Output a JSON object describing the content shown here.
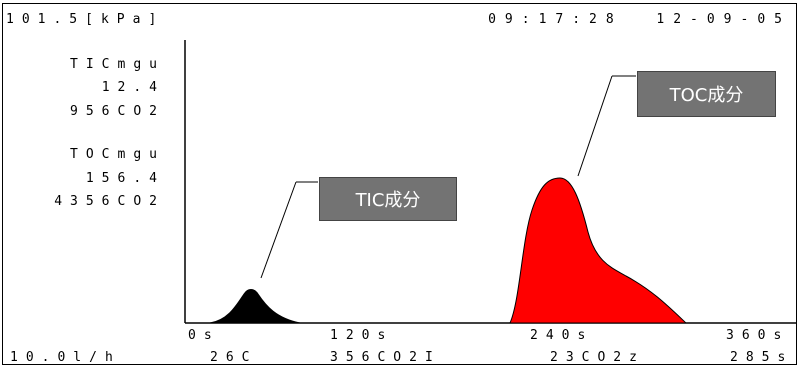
{
  "header": {
    "pressure": "101.5[kPa]",
    "time": "09:17:28",
    "date": "12-09-05"
  },
  "tic": {
    "heading": "TICmgu",
    "value": "12.4",
    "area": "956CO2"
  },
  "toc": {
    "heading": "TOCmgu",
    "value": "156.4",
    "area": "4356CO2"
  },
  "axis": {
    "ticks": [
      "0s",
      "120s",
      "240s",
      "360s"
    ]
  },
  "footer": {
    "flow": "10.0l/h",
    "temp": "26C",
    "co2_i": "356CO2I",
    "co2_z": "23CO2z",
    "pressure": "285s"
  },
  "labels": {
    "tic_component": "TIC成分",
    "toc_component": "TOC成分"
  },
  "colors": {
    "tic_peak": "#000000",
    "toc_peak": "#ff0000",
    "label_box": "#737373"
  },
  "chart_data": {
    "type": "area",
    "xlim": [
      0,
      360
    ],
    "series": [
      {
        "name": "TIC成分",
        "peak_x": 40,
        "color": "#000000"
      },
      {
        "name": "TOC成分",
        "peak_x": 240,
        "color": "#ff0000"
      }
    ]
  }
}
